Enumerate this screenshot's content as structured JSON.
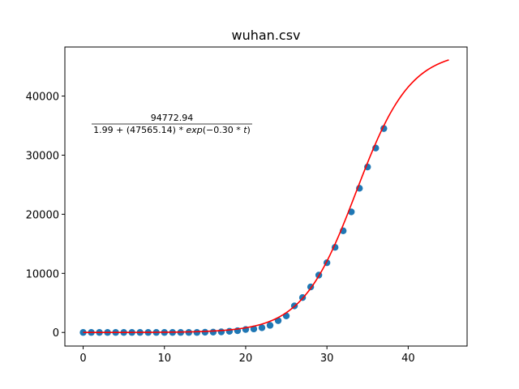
{
  "chart_data": {
    "type": "scatter",
    "title": "wuhan.csv",
    "xlabel": "",
    "ylabel": "",
    "xlim": [
      -2.25,
      47.25
    ],
    "ylim": [
      -2300,
      48300
    ],
    "xticks": [
      0,
      10,
      20,
      30,
      40
    ],
    "yticks": [
      0,
      10000,
      20000,
      30000,
      40000
    ],
    "grid": false,
    "series": [
      {
        "kind": "scatter",
        "color": "#1f77b4",
        "x": [
          0,
          1,
          2,
          3,
          4,
          5,
          6,
          7,
          8,
          9,
          10,
          11,
          12,
          13,
          14,
          15,
          16,
          17,
          18,
          19,
          20,
          21,
          22,
          23,
          24,
          25,
          26,
          27,
          28,
          29,
          30,
          31,
          32,
          33,
          34,
          35,
          36,
          37
        ],
        "y": [
          0,
          0,
          0,
          0,
          0,
          0,
          0,
          0,
          0,
          0,
          0,
          0,
          0,
          0,
          0,
          40,
          60,
          100,
          200,
          300,
          500,
          600,
          800,
          1200,
          2000,
          2800,
          4500,
          5900,
          7700,
          9700,
          11800,
          14400,
          17200,
          20400,
          24400,
          28000,
          31200,
          34500
        ]
      },
      {
        "kind": "line",
        "color": "#ff0000",
        "formula": {
          "K": 94772.94,
          "a": 1.99,
          "b": 47565.14,
          "r": 0.3
        },
        "x_range": [
          0,
          45
        ]
      }
    ],
    "annotation": {
      "numerator": "94772.94",
      "denominator_prefix": "1.99 + (47565.14) * ",
      "denominator_italic": "exp",
      "denominator_mid": "(−0.30 * ",
      "denominator_italic2": "t",
      "denominator_suffix": ")"
    }
  }
}
